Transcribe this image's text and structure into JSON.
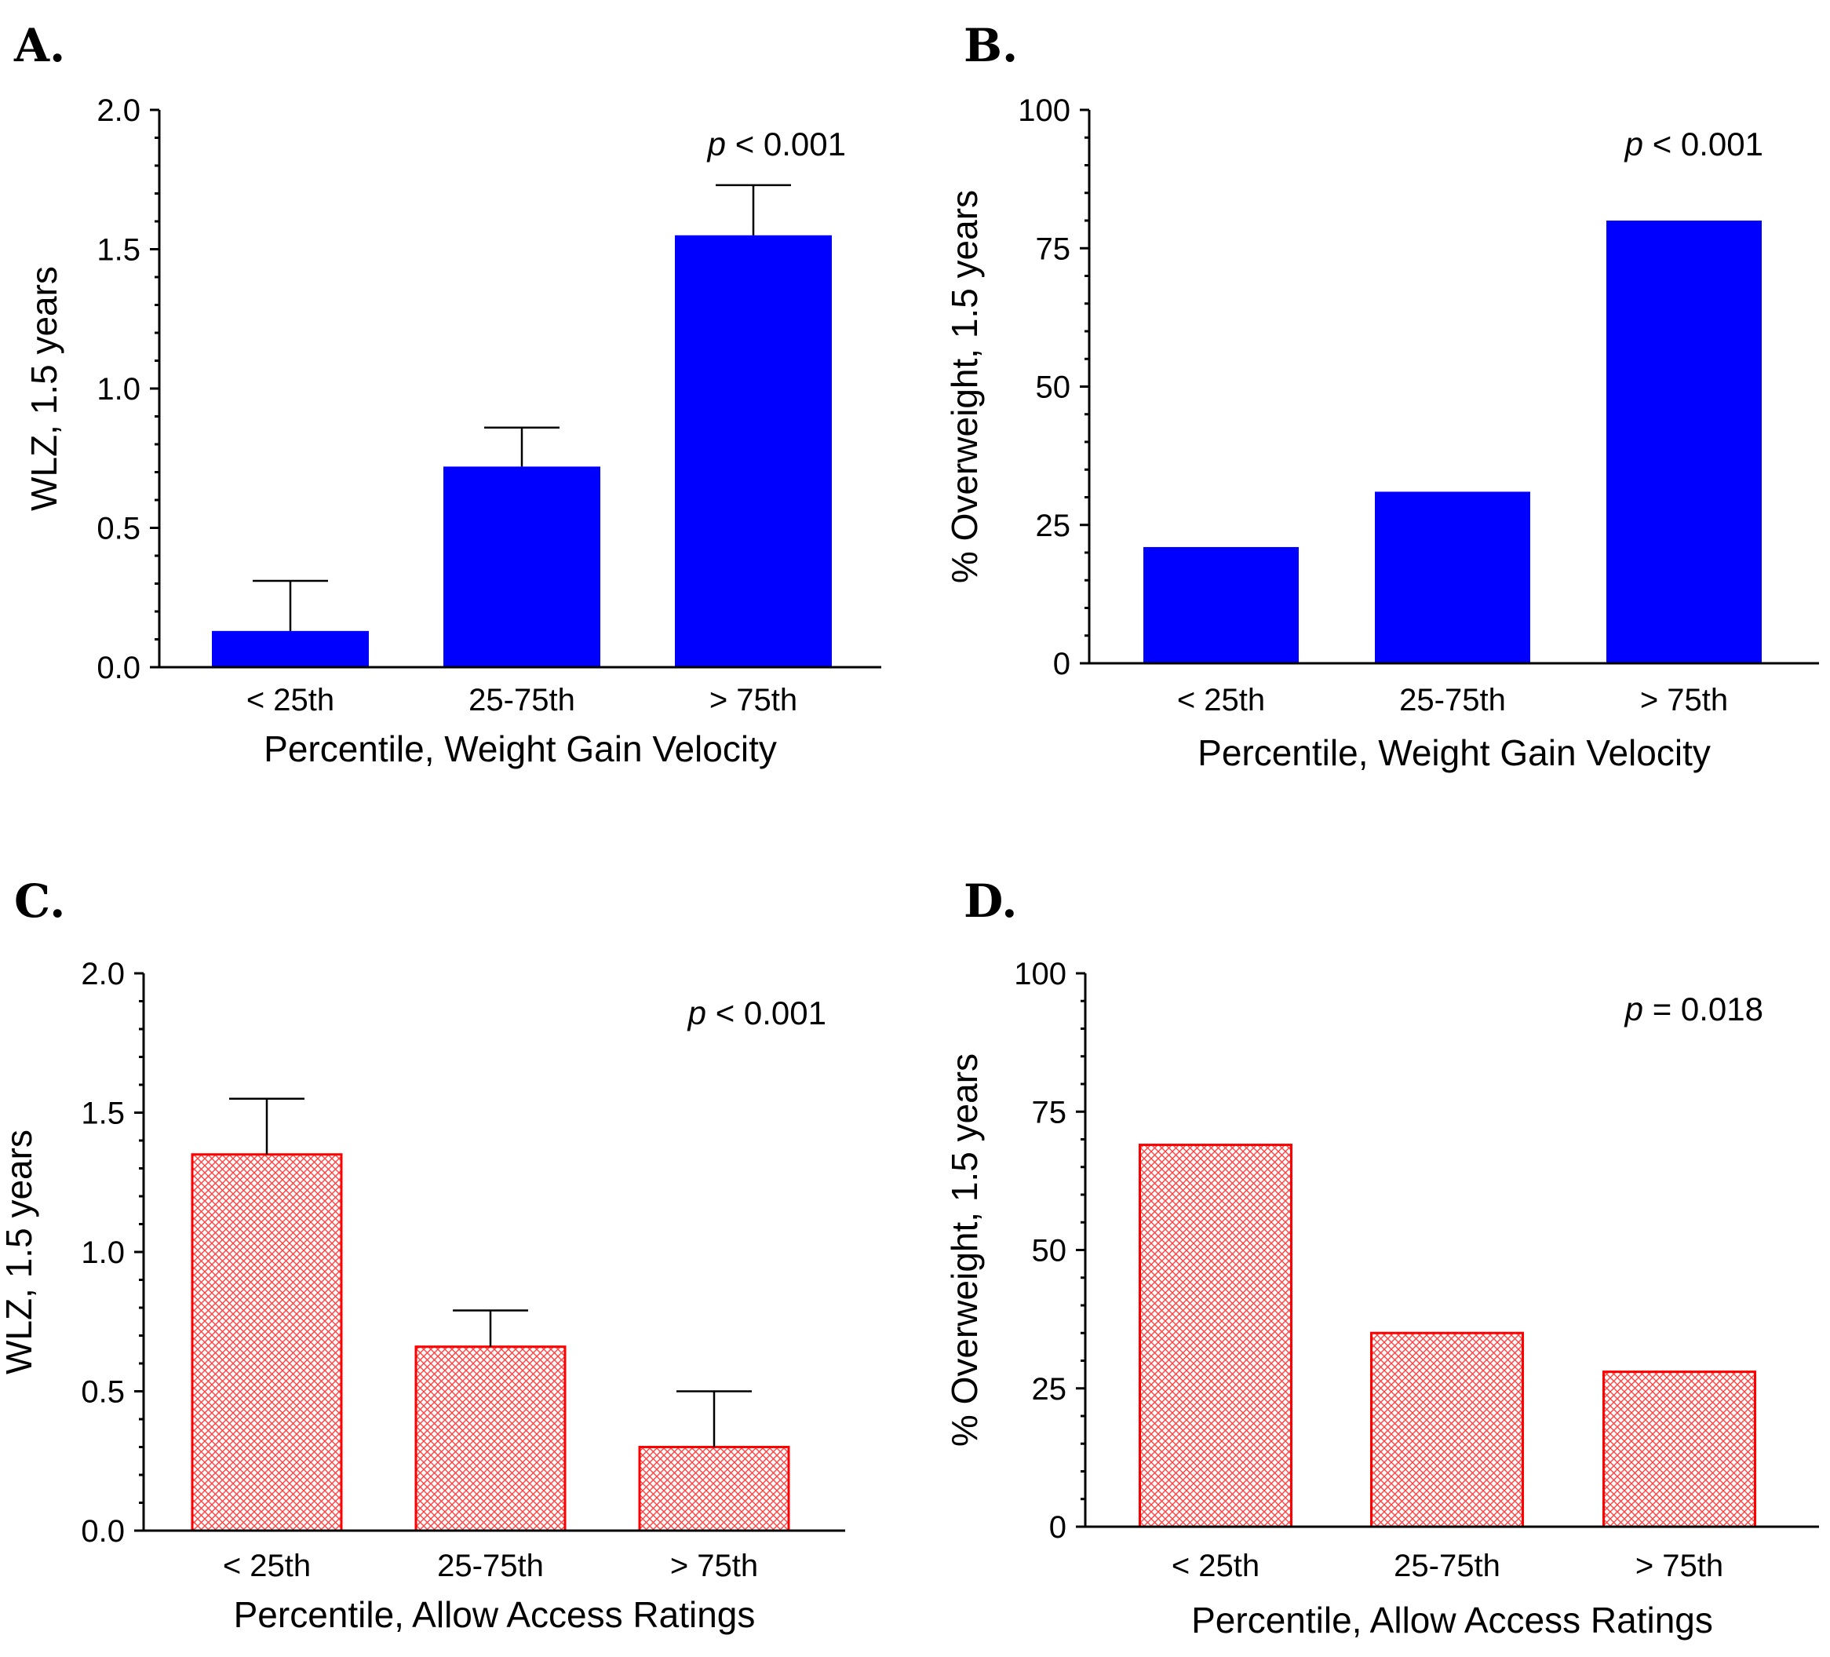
{
  "chart_data": [
    {
      "panel": "A.",
      "type": "bar",
      "categories": [
        "< 25th",
        "25-75th",
        "> 75th"
      ],
      "values": [
        0.13,
        0.72,
        1.55
      ],
      "errors": [
        0.18,
        0.14,
        0.18
      ],
      "xlabel": "Percentile, Weight Gain Velocity",
      "ylabel": "WLZ, 1.5 years",
      "ylim": [
        0,
        2
      ],
      "yticks": [
        0,
        0.5,
        1,
        1.5,
        2
      ],
      "ytick_labels": [
        "0.0",
        "0.5",
        "1.0",
        "1.5",
        "2.0"
      ],
      "p_prefix": "p",
      "p_suffix": " < 0.001",
      "style": "solid",
      "color": "#0000ff"
    },
    {
      "panel": "B.",
      "type": "bar",
      "categories": [
        "< 25th",
        "25-75th",
        "> 75th"
      ],
      "values": [
        21,
        31,
        80
      ],
      "errors": [],
      "xlabel": "Percentile, Weight Gain Velocity",
      "ylabel": "% Overweight, 1.5 years",
      "ylim": [
        0,
        100
      ],
      "yticks": [
        0,
        25,
        50,
        75,
        100
      ],
      "ytick_labels": [
        "0",
        "25",
        "50",
        "75",
        "100"
      ],
      "p_prefix": "p",
      "p_suffix": " < 0.001",
      "style": "solid",
      "color": "#0000ff"
    },
    {
      "panel": "C.",
      "type": "bar",
      "categories": [
        "< 25th",
        "25-75th",
        "> 75th"
      ],
      "values": [
        1.35,
        0.66,
        0.3
      ],
      "errors": [
        0.2,
        0.13,
        0.2
      ],
      "xlabel": "Percentile, Allow Access Ratings",
      "ylabel": "WLZ, 1.5 years",
      "ylim": [
        0,
        2
      ],
      "yticks": [
        0,
        0.5,
        1,
        1.5,
        2
      ],
      "ytick_labels": [
        "0.0",
        "0.5",
        "1.0",
        "1.5",
        "2.0"
      ],
      "p_prefix": "p",
      "p_suffix": " < 0.001",
      "style": "hatched",
      "color": "#ff0000"
    },
    {
      "panel": "D.",
      "type": "bar",
      "categories": [
        "< 25th",
        "25-75th",
        "> 75th"
      ],
      "values": [
        69,
        35,
        28
      ],
      "errors": [],
      "xlabel": "Percentile, Allow Access Ratings",
      "ylabel": "% Overweight, 1.5 years",
      "ylim": [
        0,
        100
      ],
      "yticks": [
        0,
        25,
        50,
        75,
        100
      ],
      "ytick_labels": [
        "0",
        "25",
        "50",
        "75",
        "100"
      ],
      "p_prefix": "p",
      "p_suffix": " = 0.018",
      "style": "hatched",
      "color": "#ff0000"
    }
  ]
}
